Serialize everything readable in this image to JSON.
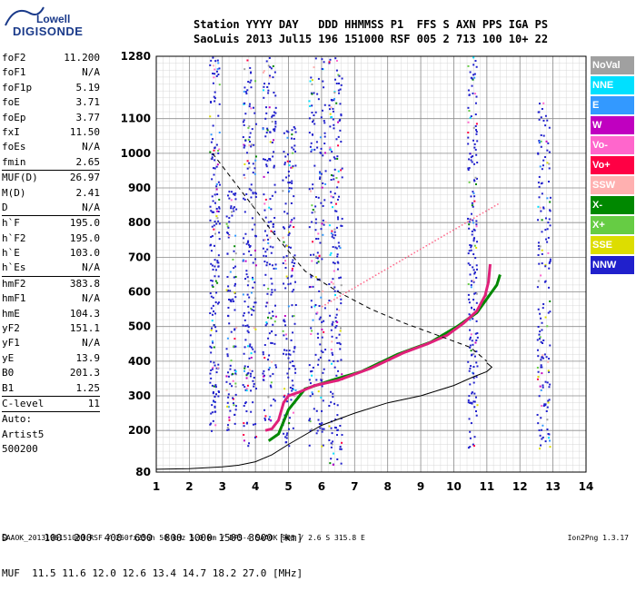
{
  "logo": {
    "line1": "Lowell",
    "line2": "DIGISONDE"
  },
  "header": {
    "line1": "Station YYYY DAY   DDD HHMMSS P1  FFS S AXN PPS IGA PS",
    "line2": "SaoLuis 2013 Jul15 196 151000 RSF 005 2 713 100 10+ 22"
  },
  "params": [
    [
      {
        "name": "foF2",
        "value": "11.200"
      },
      {
        "name": "foF1",
        "value": "N/A"
      },
      {
        "name": "foF1p",
        "value": "5.19"
      },
      {
        "name": "foE",
        "value": "3.71"
      },
      {
        "name": "foEp",
        "value": "3.77"
      },
      {
        "name": "fxI",
        "value": "11.50"
      },
      {
        "name": "foEs",
        "value": "N/A"
      },
      {
        "name": "fmin",
        "value": "2.65"
      }
    ],
    [
      {
        "name": "MUF(D)",
        "value": "26.97"
      },
      {
        "name": "M(D)",
        "value": "2.41"
      },
      {
        "name": "D",
        "value": "N/A"
      }
    ],
    [
      {
        "name": "h`F",
        "value": "195.0"
      },
      {
        "name": "h`F2",
        "value": "195.0"
      },
      {
        "name": "h`E",
        "value": "103.0"
      },
      {
        "name": "h`Es",
        "value": "N/A"
      }
    ],
    [
      {
        "name": "hmF2",
        "value": "383.8"
      },
      {
        "name": "hmF1",
        "value": "N/A"
      },
      {
        "name": "hmE",
        "value": "104.3"
      },
      {
        "name": "yF2",
        "value": "151.1"
      },
      {
        "name": "yF1",
        "value": "N/A"
      },
      {
        "name": "yE",
        "value": "13.9"
      },
      {
        "name": "B0",
        "value": "201.3"
      },
      {
        "name": "B1",
        "value": "1.25"
      }
    ],
    [
      {
        "name": "C-level",
        "value": "11"
      }
    ],
    [
      {
        "name": "Auto:",
        "value": ""
      },
      {
        "name": "Artist5",
        "value": ""
      },
      {
        "name": "500200",
        "value": ""
      }
    ]
  ],
  "legend": [
    {
      "label": "NoVal",
      "color": "#a0a0a0"
    },
    {
      "label": "NNE",
      "color": "#00e0ff"
    },
    {
      "label": "E",
      "color": "#3399ff"
    },
    {
      "label": "W",
      "color": "#c000c0"
    },
    {
      "label": "Vo-",
      "color": "#ff66cc"
    },
    {
      "label": "Vo+",
      "color": "#ff0044"
    },
    {
      "label": "SSW",
      "color": "#ffb0b0"
    },
    {
      "label": "X-",
      "color": "#008800"
    },
    {
      "label": "X+",
      "color": "#66cc44"
    },
    {
      "label": "SSE",
      "color": "#dddd00"
    },
    {
      "label": "NNW",
      "color": "#2020cc"
    }
  ],
  "muf": {
    "line1": "D      100  200  400  600  800 1000 1500 3000 [km]",
    "line2": "MUF  11.5 11.6 12.0 12.6 13.4 14.7 18.2 27.0 [MHz]"
  },
  "footer": "SAAOK_2013196151000.RSF / 260fx256h 50 kHz 5.0 km / DPS-4 SAAOK 903 / 2.6 S 315.8 E",
  "version": "Ion2Png 1.3.17",
  "chart_data": {
    "type": "scatter",
    "xlim": [
      1,
      14
    ],
    "ylim": [
      80,
      1280
    ],
    "x_ticks": [
      1,
      2,
      3,
      4,
      5,
      6,
      7,
      8,
      9,
      10,
      11,
      12,
      13,
      14
    ],
    "y_ticks": [
      80,
      200,
      300,
      400,
      500,
      600,
      700,
      800,
      900,
      1000,
      1100,
      1280
    ],
    "grid": true,
    "trace_ordinary": [
      [
        4.3,
        200
      ],
      [
        4.5,
        205
      ],
      [
        4.7,
        230
      ],
      [
        4.85,
        280
      ],
      [
        5.0,
        300
      ],
      [
        5.3,
        310
      ],
      [
        5.8,
        330
      ],
      [
        6.5,
        345
      ],
      [
        7.5,
        380
      ],
      [
        8.5,
        425
      ],
      [
        9.2,
        450
      ],
      [
        9.8,
        475
      ],
      [
        10.3,
        510
      ],
      [
        10.7,
        545
      ],
      [
        10.95,
        590
      ],
      [
        11.05,
        630
      ],
      [
        11.1,
        680
      ]
    ],
    "trace_extraordinary": [
      [
        4.4,
        170
      ],
      [
        4.7,
        190
      ],
      [
        5.0,
        260
      ],
      [
        5.5,
        320
      ],
      [
        6.3,
        345
      ],
      [
        7.2,
        370
      ],
      [
        8.3,
        420
      ],
      [
        9.3,
        455
      ],
      [
        10.1,
        500
      ],
      [
        10.7,
        540
      ],
      [
        11.0,
        580
      ],
      [
        11.3,
        620
      ],
      [
        11.4,
        650
      ]
    ],
    "profile_solid": [
      [
        1,
        88
      ],
      [
        2,
        90
      ],
      [
        3,
        95
      ],
      [
        3.5,
        100
      ],
      [
        4,
        110
      ],
      [
        4.5,
        130
      ],
      [
        5,
        160
      ],
      [
        6,
        215
      ],
      [
        7,
        250
      ],
      [
        8,
        280
      ],
      [
        9,
        300
      ],
      [
        10,
        330
      ],
      [
        10.6,
        355
      ],
      [
        11.0,
        370
      ],
      [
        11.15,
        383
      ],
      [
        11.0,
        395
      ]
    ],
    "profile_dashed": [
      [
        2.7,
        1000
      ],
      [
        3.5,
        900
      ],
      [
        4.5,
        775
      ],
      [
        5.5,
        660
      ],
      [
        6.5,
        600
      ],
      [
        7.5,
        550
      ],
      [
        8.5,
        510
      ],
      [
        9.5,
        475
      ],
      [
        10.5,
        440
      ],
      [
        11.0,
        400
      ]
    ]
  }
}
